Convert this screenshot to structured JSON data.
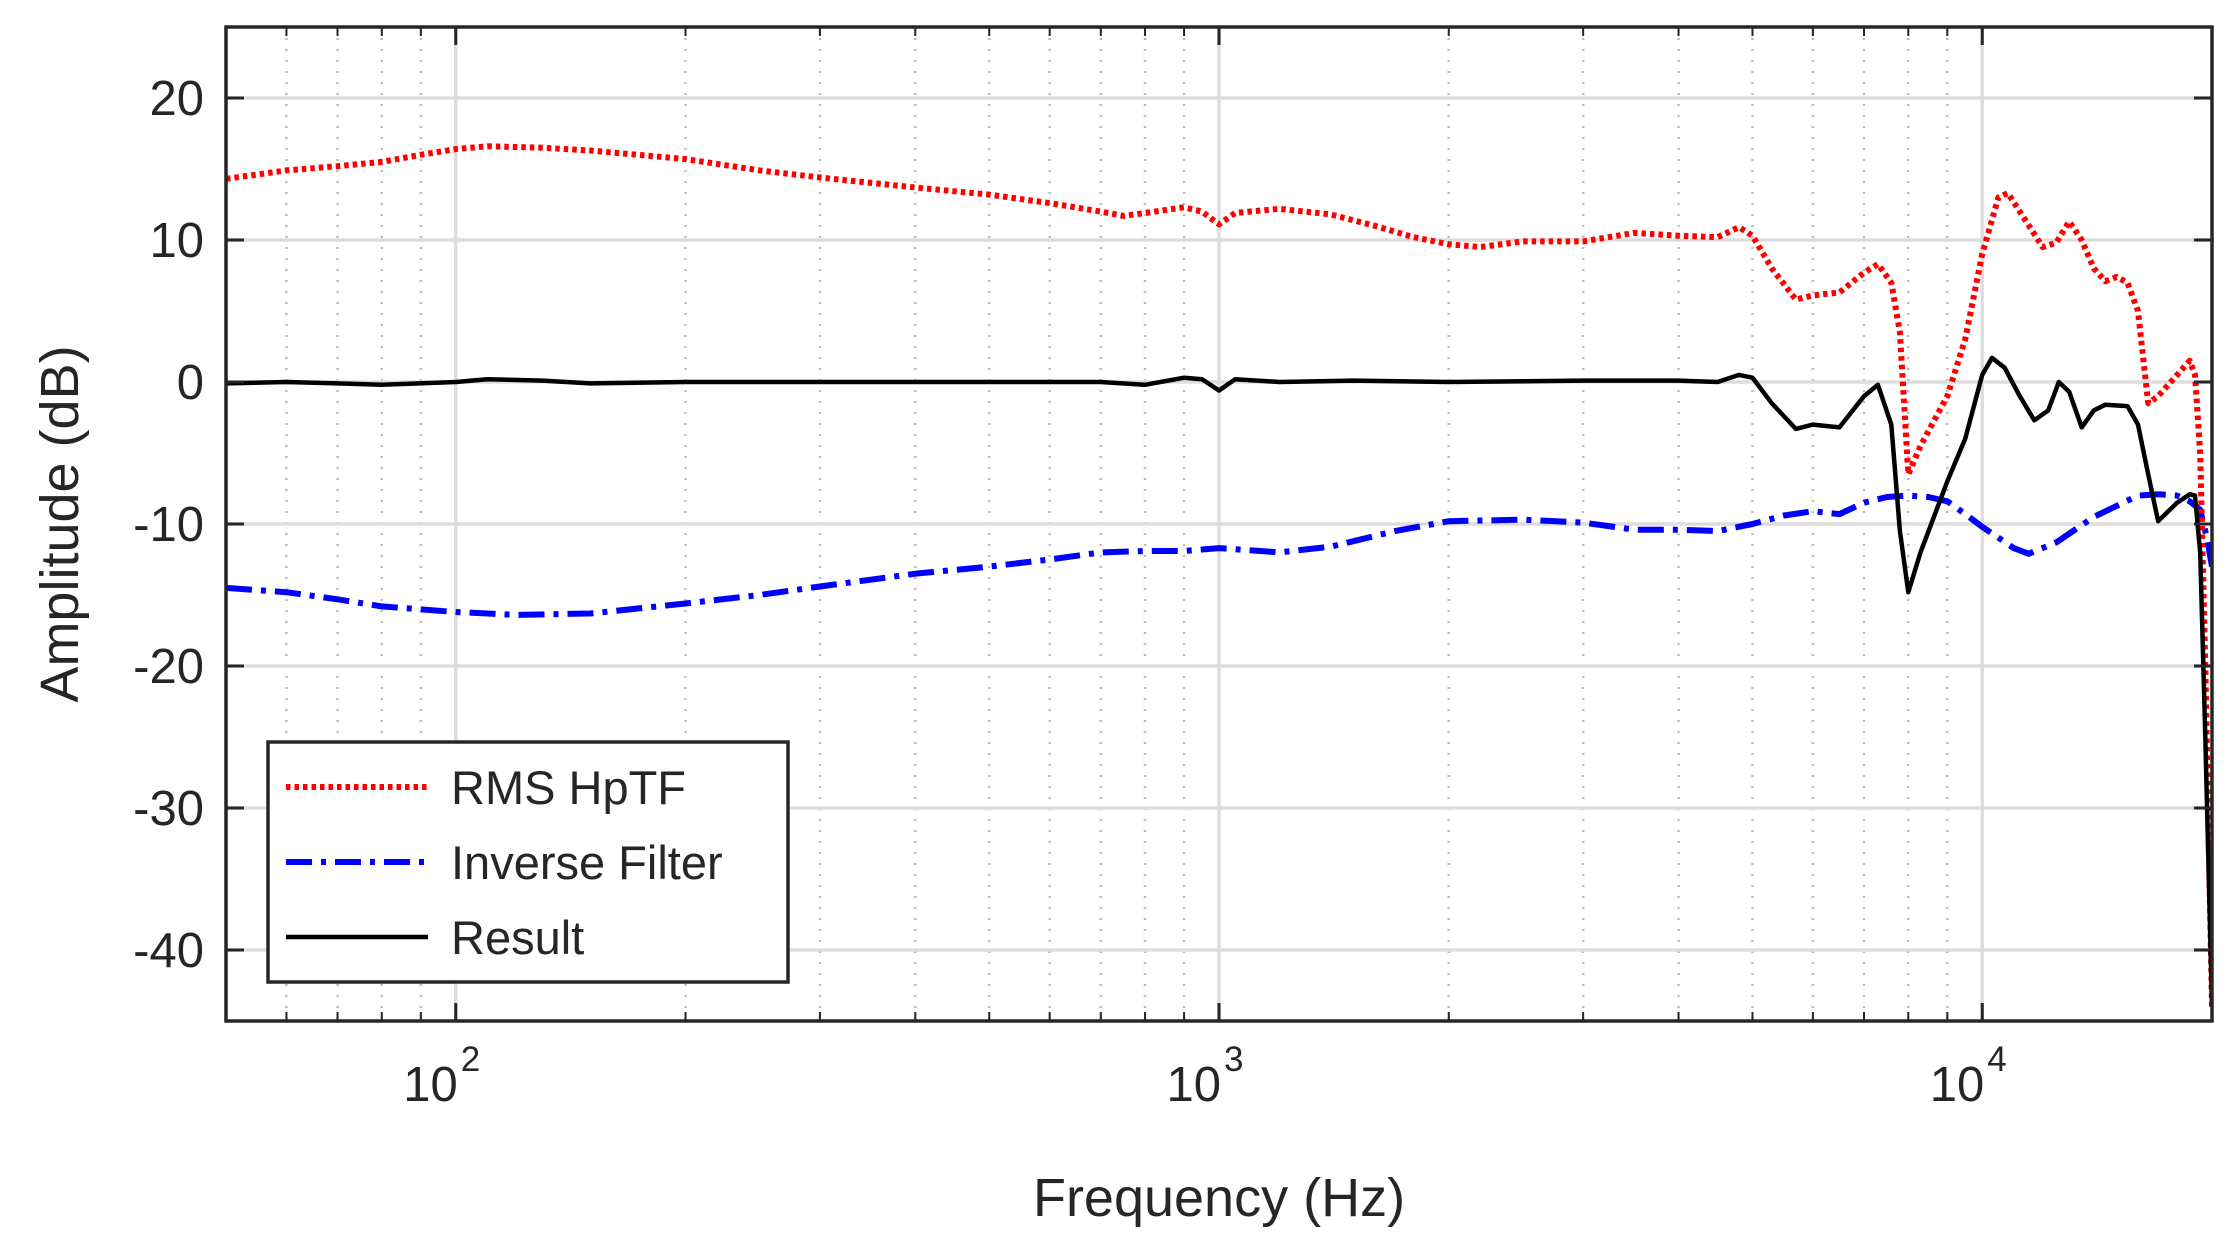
{
  "chart_data": {
    "type": "line",
    "title": "",
    "xlabel": "Frequency (Hz)",
    "ylabel": "Amplitude (dB)",
    "xscale": "log",
    "xlim": [
      50,
      20000
    ],
    "ylim": [
      -45,
      25
    ],
    "grid": true,
    "x_ticks": [
      {
        "value": 100,
        "base": "10",
        "exp": "2"
      },
      {
        "value": 1000,
        "base": "10",
        "exp": "3"
      },
      {
        "value": 10000,
        "base": "10",
        "exp": "4"
      }
    ],
    "y_ticks": [
      {
        "value": 20,
        "label": "20"
      },
      {
        "value": 10,
        "label": "10"
      },
      {
        "value": 0,
        "label": "0"
      },
      {
        "value": -10,
        "label": "-10"
      },
      {
        "value": -20,
        "label": "-20"
      },
      {
        "value": -30,
        "label": "-30"
      },
      {
        "value": -40,
        "label": "-40"
      }
    ],
    "legend_position": "bottom-left",
    "series": [
      {
        "name": "RMS HpTF",
        "color": "#ff0000",
        "style": "dotted",
        "points": [
          [
            50,
            14.3
          ],
          [
            60,
            14.9
          ],
          [
            70,
            15.2
          ],
          [
            80,
            15.5
          ],
          [
            90,
            16.0
          ],
          [
            100,
            16.4
          ],
          [
            110,
            16.6
          ],
          [
            130,
            16.5
          ],
          [
            150,
            16.3
          ],
          [
            200,
            15.7
          ],
          [
            250,
            14.9
          ],
          [
            300,
            14.4
          ],
          [
            400,
            13.7
          ],
          [
            500,
            13.2
          ],
          [
            600,
            12.6
          ],
          [
            700,
            12.0
          ],
          [
            750,
            11.7
          ],
          [
            800,
            11.9
          ],
          [
            900,
            12.3
          ],
          [
            950,
            12.0
          ],
          [
            1000,
            11.1
          ],
          [
            1050,
            11.9
          ],
          [
            1200,
            12.2
          ],
          [
            1400,
            11.8
          ],
          [
            1600,
            11.0
          ],
          [
            1800,
            10.2
          ],
          [
            2000,
            9.7
          ],
          [
            2200,
            9.5
          ],
          [
            2500,
            9.9
          ],
          [
            3000,
            9.9
          ],
          [
            3500,
            10.5
          ],
          [
            4000,
            10.3
          ],
          [
            4500,
            10.2
          ],
          [
            4800,
            10.9
          ],
          [
            5000,
            10.3
          ],
          [
            5300,
            8.0
          ],
          [
            5700,
            5.8
          ],
          [
            6000,
            6.1
          ],
          [
            6500,
            6.3
          ],
          [
            7000,
            7.7
          ],
          [
            7300,
            8.3
          ],
          [
            7600,
            7.0
          ],
          [
            7800,
            3.5
          ],
          [
            8000,
            -6.5
          ],
          [
            8300,
            -4.5
          ],
          [
            9000,
            -1.0
          ],
          [
            9500,
            3.0
          ],
          [
            10000,
            9.0
          ],
          [
            10500,
            13.0
          ],
          [
            10800,
            13.3
          ],
          [
            11200,
            12.0
          ],
          [
            12000,
            9.5
          ],
          [
            12500,
            9.8
          ],
          [
            13000,
            11.3
          ],
          [
            13500,
            10.0
          ],
          [
            14000,
            8.0
          ],
          [
            14500,
            7.1
          ],
          [
            15000,
            7.4
          ],
          [
            15500,
            7.0
          ],
          [
            16000,
            5.0
          ],
          [
            16500,
            -1.5
          ],
          [
            17000,
            -1.0
          ],
          [
            18000,
            0.5
          ],
          [
            18700,
            1.5
          ],
          [
            19000,
            0.5
          ],
          [
            19300,
            -5
          ],
          [
            19600,
            -20
          ],
          [
            20000,
            -44
          ]
        ]
      },
      {
        "name": "Inverse Filter",
        "color": "#0000ff",
        "style": "dashdot",
        "points": [
          [
            50,
            -14.5
          ],
          [
            60,
            -14.8
          ],
          [
            70,
            -15.3
          ],
          [
            80,
            -15.8
          ],
          [
            100,
            -16.2
          ],
          [
            120,
            -16.4
          ],
          [
            150,
            -16.3
          ],
          [
            200,
            -15.6
          ],
          [
            250,
            -15.0
          ],
          [
            300,
            -14.4
          ],
          [
            400,
            -13.5
          ],
          [
            500,
            -13.0
          ],
          [
            600,
            -12.5
          ],
          [
            700,
            -12.0
          ],
          [
            800,
            -11.9
          ],
          [
            900,
            -11.9
          ],
          [
            1000,
            -11.7
          ],
          [
            1200,
            -12.0
          ],
          [
            1400,
            -11.6
          ],
          [
            1700,
            -10.5
          ],
          [
            2000,
            -9.8
          ],
          [
            2500,
            -9.7
          ],
          [
            3000,
            -9.9
          ],
          [
            3500,
            -10.4
          ],
          [
            4000,
            -10.4
          ],
          [
            4500,
            -10.5
          ],
          [
            5000,
            -10.0
          ],
          [
            5500,
            -9.4
          ],
          [
            6000,
            -9.1
          ],
          [
            6500,
            -9.3
          ],
          [
            7000,
            -8.5
          ],
          [
            7500,
            -8.1
          ],
          [
            8000,
            -8.0
          ],
          [
            8500,
            -8.1
          ],
          [
            9000,
            -8.4
          ],
          [
            9500,
            -9.3
          ],
          [
            10000,
            -10.2
          ],
          [
            11000,
            -11.7
          ],
          [
            11500,
            -12.1
          ],
          [
            12500,
            -11.3
          ],
          [
            14000,
            -9.5
          ],
          [
            16000,
            -8.0
          ],
          [
            17000,
            -7.9
          ],
          [
            18000,
            -8.0
          ],
          [
            18700,
            -8.4
          ],
          [
            19300,
            -9
          ],
          [
            19700,
            -11
          ],
          [
            20000,
            -13
          ]
        ]
      },
      {
        "name": "Result",
        "color": "#000000",
        "style": "solid",
        "points": [
          [
            50,
            -0.1
          ],
          [
            60,
            0.0
          ],
          [
            70,
            -0.1
          ],
          [
            80,
            -0.2
          ],
          [
            100,
            0.0
          ],
          [
            110,
            0.2
          ],
          [
            130,
            0.1
          ],
          [
            150,
            -0.1
          ],
          [
            200,
            0.0
          ],
          [
            300,
            0.0
          ],
          [
            500,
            0.0
          ],
          [
            700,
            0.0
          ],
          [
            800,
            -0.2
          ],
          [
            900,
            0.3
          ],
          [
            950,
            0.2
          ],
          [
            1000,
            -0.6
          ],
          [
            1050,
            0.2
          ],
          [
            1200,
            0.0
          ],
          [
            1500,
            0.1
          ],
          [
            2000,
            0.0
          ],
          [
            3000,
            0.1
          ],
          [
            4000,
            0.1
          ],
          [
            4500,
            0.0
          ],
          [
            4800,
            0.5
          ],
          [
            5000,
            0.3
          ],
          [
            5300,
            -1.5
          ],
          [
            5700,
            -3.3
          ],
          [
            6000,
            -3.0
          ],
          [
            6500,
            -3.2
          ],
          [
            7000,
            -1.0
          ],
          [
            7300,
            -0.2
          ],
          [
            7600,
            -3.0
          ],
          [
            7800,
            -10.5
          ],
          [
            8000,
            -14.8
          ],
          [
            8300,
            -12.0
          ],
          [
            9000,
            -7.0
          ],
          [
            9500,
            -4.0
          ],
          [
            10000,
            0.5
          ],
          [
            10300,
            1.7
          ],
          [
            10700,
            1.0
          ],
          [
            11200,
            -1.0
          ],
          [
            11700,
            -2.7
          ],
          [
            12200,
            -2.0
          ],
          [
            12600,
            0.0
          ],
          [
            13000,
            -0.7
          ],
          [
            13500,
            -3.2
          ],
          [
            14000,
            -2.0
          ],
          [
            14500,
            -1.6
          ],
          [
            15500,
            -1.7
          ],
          [
            16000,
            -3.0
          ],
          [
            16500,
            -6.5
          ],
          [
            17000,
            -9.8
          ],
          [
            18000,
            -8.5
          ],
          [
            18700,
            -7.9
          ],
          [
            19000,
            -8.0
          ],
          [
            19300,
            -12
          ],
          [
            19600,
            -25
          ],
          [
            20000,
            -44
          ]
        ]
      }
    ]
  }
}
